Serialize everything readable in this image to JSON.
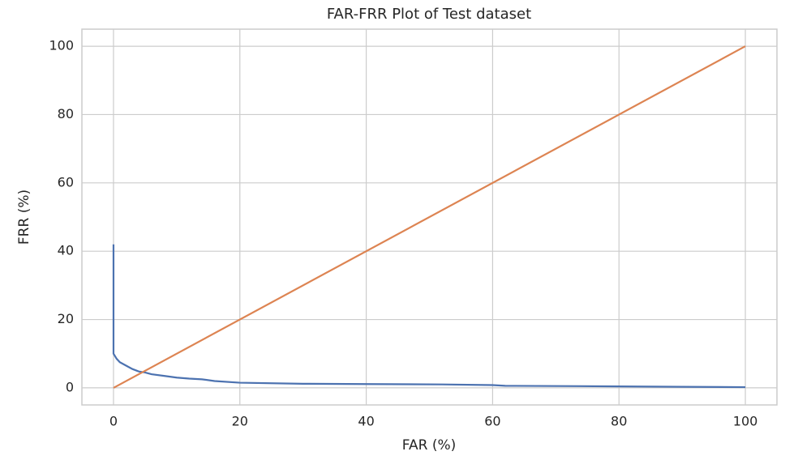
{
  "chart_data": {
    "type": "line",
    "title": "FAR-FRR Plot of Test dataset",
    "x_label": "FAR (%)",
    "y_label": "FRR (%)",
    "series": [
      {
        "color": "#4c72b0",
        "x": [
          0,
          0,
          0.5,
          1,
          2,
          3,
          4,
          5,
          6,
          8,
          10,
          12,
          14,
          16,
          20,
          30,
          40,
          52,
          60,
          62,
          74,
          90,
          100
        ],
        "values": [
          42,
          10,
          8.5,
          7.5,
          6.5,
          5.5,
          4.8,
          4.5,
          4,
          3.5,
          3,
          2.7,
          2.5,
          2,
          1.5,
          1.2,
          1.1,
          1,
          0.8,
          0.6,
          0.5,
          0.3,
          0.2
        ]
      },
      {
        "color": "#dd8452",
        "x": [
          0,
          100
        ],
        "values": [
          0,
          100
        ]
      }
    ],
    "xlim": [
      -5,
      105
    ],
    "ylim": [
      -5,
      105
    ],
    "xticks": [
      0,
      20,
      40,
      60,
      80,
      100
    ],
    "yticks": [
      0,
      20,
      40,
      60,
      80,
      100
    ],
    "grid": true
  }
}
